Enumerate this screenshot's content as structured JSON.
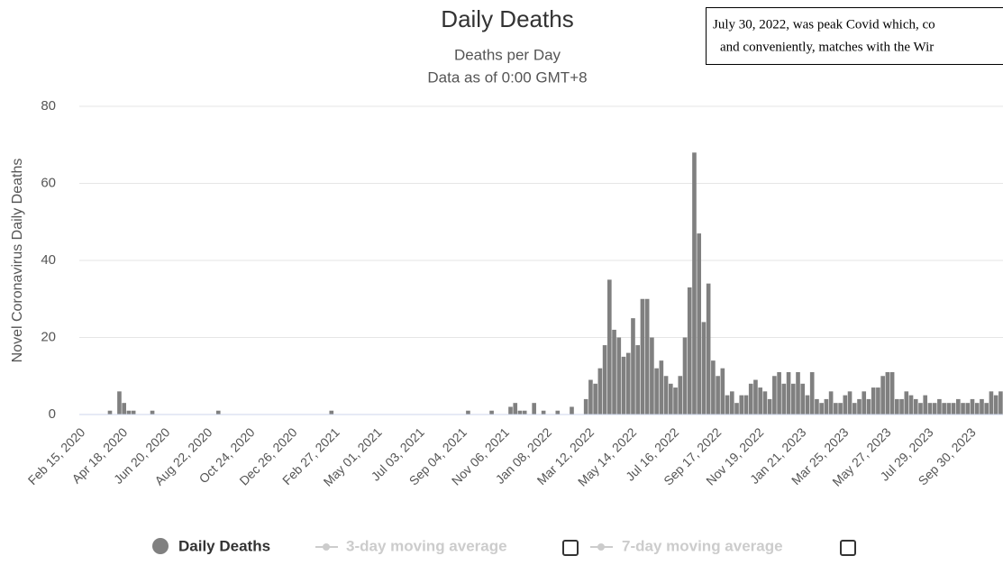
{
  "chart_data": {
    "type": "bar",
    "title": "Daily Deaths",
    "subtitle": "Deaths per Day",
    "subtitle2": "Data as of 0:00 GMT+8",
    "y_label": "Novel Coronavirus Daily Deaths",
    "annotation": [
      "July 30, 2022, was peak Covid which, co",
      "and conveniently, matches with the Wir"
    ],
    "categories": [
      "Feb 15, 2020",
      null,
      null,
      null,
      null,
      null,
      null,
      null,
      null,
      "Apr 18, 2020",
      null,
      null,
      null,
      null,
      null,
      null,
      null,
      null,
      "Jun 20, 2020",
      null,
      null,
      null,
      null,
      null,
      null,
      null,
      null,
      "Aug 22, 2020",
      null,
      null,
      null,
      null,
      null,
      null,
      null,
      null,
      "Oct 24, 2020",
      null,
      null,
      null,
      null,
      null,
      null,
      null,
      null,
      "Dec 26, 2020",
      null,
      null,
      null,
      null,
      null,
      null,
      null,
      null,
      "Feb 27, 2021",
      null,
      null,
      null,
      null,
      null,
      null,
      null,
      null,
      "May 01, 2021",
      null,
      null,
      null,
      null,
      null,
      null,
      null,
      null,
      "Jul 03, 2021",
      null,
      null,
      null,
      null,
      null,
      null,
      null,
      null,
      "Sep 04, 2021",
      null,
      null,
      null,
      null,
      null,
      null,
      null,
      null,
      "Nov 06, 2021",
      null,
      null,
      null,
      null,
      null,
      null,
      null,
      null,
      "Jan 08, 2022",
      null,
      null,
      null,
      null,
      null,
      null,
      null,
      null,
      "Mar 12, 2022",
      null,
      null,
      null,
      null,
      null,
      null,
      null,
      null,
      "May 14, 2022",
      null,
      null,
      null,
      null,
      null,
      null,
      null,
      null,
      "Jul 16, 2022",
      null,
      null,
      null,
      null,
      null,
      null,
      null,
      null,
      "Sep 17, 2022",
      null,
      null,
      null,
      null,
      null,
      null,
      null,
      null,
      "Nov 19, 2022",
      null,
      null,
      null,
      null,
      null,
      null,
      null,
      null,
      "Jan 21, 2023",
      null,
      null,
      null,
      null,
      null,
      null,
      null,
      null,
      "Mar 25, 2023",
      null,
      null,
      null,
      null,
      null,
      null,
      null,
      null,
      "May 27, 2023",
      null,
      null,
      null,
      null,
      null,
      null,
      null,
      null,
      "Jul 29, 2023",
      null,
      null,
      null,
      null,
      null,
      null,
      null,
      null,
      "Sep 30, 2023",
      null,
      null,
      null,
      null,
      null,
      null
    ],
    "series": [
      {
        "name": "Daily Deaths",
        "color": "#808080",
        "values": [
          0,
          0,
          0,
          0,
          0,
          0,
          1,
          0,
          6,
          3,
          1,
          1,
          0,
          0,
          0,
          1,
          0,
          0,
          0,
          0,
          0,
          0,
          0,
          0,
          0,
          0,
          0,
          0,
          0,
          1,
          0,
          0,
          0,
          0,
          0,
          0,
          0,
          0,
          0,
          0,
          0,
          0,
          0,
          0,
          0,
          0,
          0,
          0,
          0,
          0,
          0,
          0,
          0,
          1,
          0,
          0,
          0,
          0,
          0,
          0,
          0,
          0,
          0,
          0,
          0,
          0,
          0,
          0,
          0,
          0,
          0,
          0,
          0,
          0,
          0,
          0,
          0,
          0,
          0,
          0,
          0,
          0,
          1,
          0,
          0,
          0,
          0,
          1,
          0,
          0,
          0,
          2,
          3,
          1,
          1,
          0,
          3,
          0,
          1,
          0,
          0,
          1,
          0,
          0,
          2,
          0,
          0,
          4,
          9,
          8,
          12,
          18,
          35,
          22,
          20,
          15,
          16,
          25,
          18,
          30,
          30,
          20,
          12,
          14,
          10,
          8,
          7,
          10,
          20,
          33,
          68,
          47,
          24,
          34,
          14,
          10,
          12,
          5,
          6,
          3,
          5,
          5,
          8,
          9,
          7,
          6,
          4,
          10,
          11,
          8,
          11,
          8,
          11,
          8,
          5,
          11,
          4,
          3,
          4,
          6,
          3,
          3,
          5,
          6,
          3,
          4,
          6,
          4,
          7,
          7,
          10,
          11,
          11,
          4,
          4,
          6,
          5,
          4,
          3,
          5,
          3,
          3,
          4,
          3,
          3,
          3,
          4,
          3,
          3,
          4,
          3,
          4,
          3,
          6,
          5,
          6
        ]
      }
    ],
    "legend_inactive": [
      "3-day moving average",
      "7-day moving average"
    ],
    "ylim": [
      0,
      80
    ],
    "yticks": [
      0,
      20,
      40,
      60,
      80
    ],
    "grid": true
  }
}
